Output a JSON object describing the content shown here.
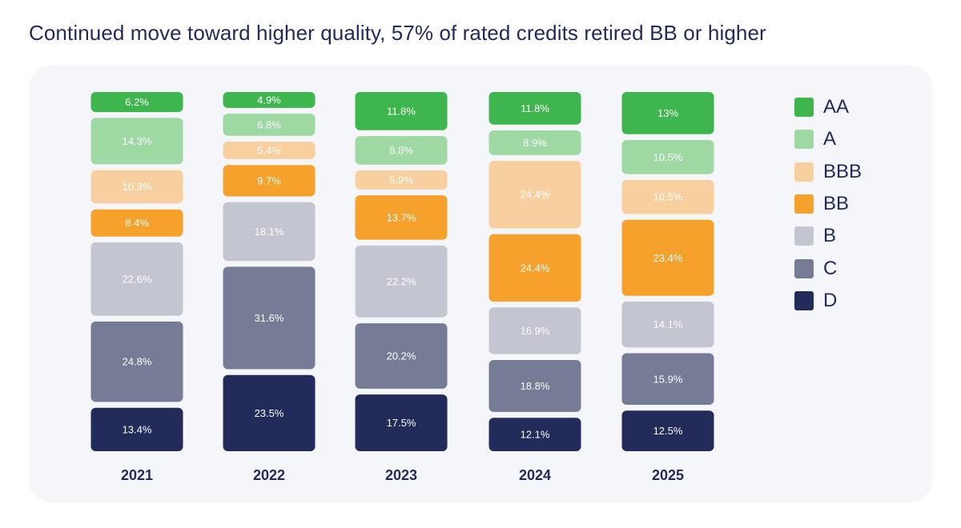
{
  "title": "Continued move toward higher quality, 57% of rated credits retired BB or higher",
  "legend": [
    {
      "label": "AA",
      "color": "#3fb64d"
    },
    {
      "label": "A",
      "color": "#9ed9a4"
    },
    {
      "label": "BBB",
      "color": "#f8d0a0"
    },
    {
      "label": "BB",
      "color": "#f5a12b"
    },
    {
      "label": "B",
      "color": "#c3c5d0"
    },
    {
      "label": "C",
      "color": "#767b96"
    },
    {
      "label": "D",
      "color": "#232b5a"
    }
  ],
  "chart_data": {
    "type": "bar",
    "stacked": true,
    "title": "Continued move toward higher quality, 57% of rated credits retired BB or higher",
    "categories": [
      "2021",
      "2022",
      "2023",
      "2024",
      "2025"
    ],
    "series": [
      {
        "name": "AA",
        "color": "#3fb64d",
        "values": [
          6.2,
          4.9,
          11.8,
          11.8,
          13
        ],
        "labels": [
          "6.2%",
          "4.9%",
          "11.8%",
          "11.8%",
          "13%"
        ]
      },
      {
        "name": "A",
        "color": "#9ed9a4",
        "values": [
          14.3,
          6.8,
          8.8,
          8.9,
          10.5
        ],
        "labels": [
          "14.3%",
          "6.8%",
          "8.8%",
          "8.9%",
          "10.5%"
        ]
      },
      {
        "name": "BBB",
        "color": "#f8d0a0",
        "values": [
          10.3,
          5.4,
          5.9,
          24.4,
          10.5
        ],
        "labels": [
          "10.3%",
          "5.4%",
          "5.9%",
          "24.4%",
          "10.5%"
        ]
      },
      {
        "name": "BB",
        "color": "#f5a12b",
        "values": [
          8.4,
          9.7,
          13.7,
          24.4,
          23.4
        ],
        "labels": [
          "8.4%",
          "9.7%",
          "13.7%",
          "24.4%",
          "23.4%"
        ]
      },
      {
        "name": "B",
        "color": "#c3c5d0",
        "values": [
          22.6,
          18.1,
          22.2,
          16.9,
          14.1
        ],
        "labels": [
          "22.6%",
          "18.1%",
          "22.2%",
          "16.9%",
          "14.1%"
        ]
      },
      {
        "name": "C",
        "color": "#767b96",
        "values": [
          24.8,
          31.6,
          20.2,
          18.8,
          15.9
        ],
        "labels": [
          "24.8%",
          "31.6%",
          "20.2%",
          "18.8%",
          "15.9%"
        ]
      },
      {
        "name": "D",
        "color": "#232b5a",
        "values": [
          13.4,
          23.5,
          17.5,
          12.1,
          12.5
        ],
        "labels": [
          "13.4%",
          "23.5%",
          "17.5%",
          "12.1%",
          "12.5%"
        ]
      }
    ],
    "legend_position": "right",
    "grid": false
  }
}
